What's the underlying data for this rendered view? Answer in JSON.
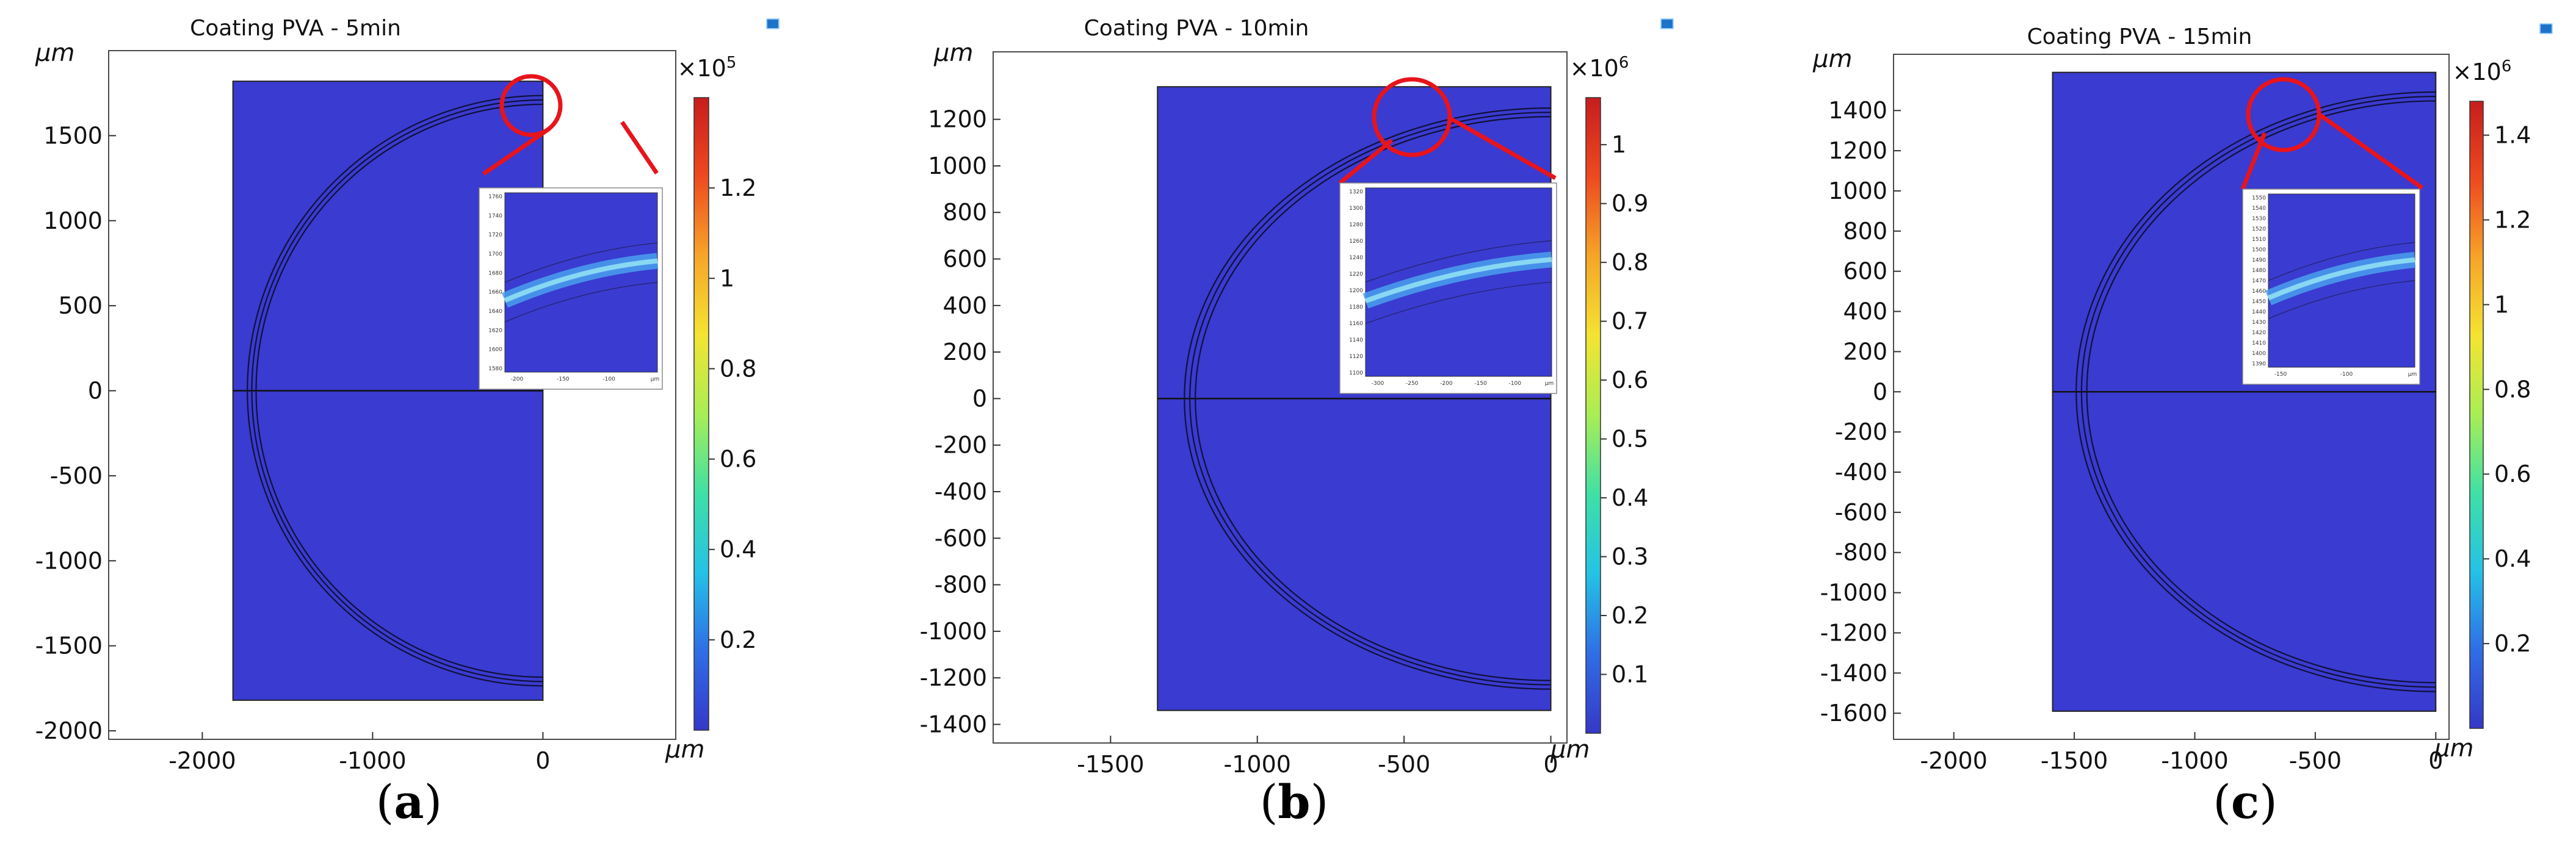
{
  "figure": {
    "panel_labels": [
      "a",
      "b",
      "c"
    ],
    "colorbar_colors": [
      "#3538c8",
      "#2f6ee6",
      "#24c2e6",
      "#3fe0a6",
      "#a8ee55",
      "#f4e431",
      "#f6a528",
      "#ee4a1f",
      "#c71d1d"
    ]
  },
  "chart_data": [
    {
      "type": "heatmap",
      "title": "Coating PVA - 5min",
      "ylabel_unit": "μm",
      "xlabel_unit": "μm",
      "xlim": [
        -2550,
        780
      ],
      "ylim": [
        -2050,
        2000
      ],
      "x_ticks": [
        -2000,
        -1000,
        0
      ],
      "y_ticks": [
        -2000,
        -1500,
        -1000,
        -500,
        0,
        500,
        1000,
        1500
      ],
      "x_tick_labels": [
        "-2000",
        "-1000",
        "0"
      ],
      "y_tick_labels": [
        "-2000",
        "-1500",
        "-1000",
        "-500",
        "0",
        "500",
        "1000",
        "1500"
      ],
      "domain_x": [
        -1820,
        0
      ],
      "domain_y": [
        -1820,
        1820
      ],
      "ring_radius": 1710,
      "colorbar": {
        "multiplier": "×10^5",
        "multiplier_base": "×10",
        "multiplier_exp": "5",
        "min": 0,
        "max": 1.4,
        "ticks": [
          0.2,
          0.4,
          0.6,
          0.8,
          1,
          1.2
        ],
        "tick_labels": [
          "0.2",
          "0.4",
          "0.6",
          "0.8",
          "1",
          "1.2"
        ]
      },
      "inset": {
        "y_tick_labels": [
          "1760",
          "1740",
          "1720",
          "1700",
          "1680",
          "1660",
          "1640",
          "1620",
          "1600",
          "1580"
        ],
        "x_tick_labels": [
          "-200",
          "-150",
          "-100",
          "μm"
        ]
      }
    },
    {
      "type": "heatmap",
      "title": "Coating PVA - 10min",
      "ylabel_unit": "μm",
      "xlabel_unit": "μm",
      "xlim": [
        -1900,
        55
      ],
      "ylim": [
        -1480,
        1490
      ],
      "x_ticks": [
        -1500,
        -1000,
        -500,
        0
      ],
      "y_ticks": [
        -1400,
        -1200,
        -1000,
        -800,
        -600,
        -400,
        -200,
        0,
        200,
        400,
        600,
        800,
        1000,
        1200
      ],
      "x_tick_labels": [
        "-1500",
        "-1000",
        "-500",
        "0"
      ],
      "y_tick_labels": [
        "-1400",
        "-1200",
        "-1000",
        "-800",
        "-600",
        "-400",
        "-200",
        "0",
        "200",
        "400",
        "600",
        "800",
        "1000",
        "1200"
      ],
      "domain_x": [
        -1340,
        0
      ],
      "domain_y": [
        -1340,
        1340
      ],
      "ring_radius": 1230,
      "colorbar": {
        "multiplier": "×10^6",
        "multiplier_base": "×10",
        "multiplier_exp": "6",
        "min": 0,
        "max": 1.08,
        "ticks": [
          0.1,
          0.2,
          0.3,
          0.4,
          0.5,
          0.6,
          0.7,
          0.8,
          0.9,
          1
        ],
        "tick_labels": [
          "0.1",
          "0.2",
          "0.3",
          "0.4",
          "0.5",
          "0.6",
          "0.7",
          "0.8",
          "0.9",
          "1"
        ]
      },
      "inset": {
        "y_tick_labels": [
          "1320",
          "1300",
          "1280",
          "1260",
          "1240",
          "1220",
          "1200",
          "1180",
          "1160",
          "1140",
          "1120",
          "1100"
        ],
        "x_tick_labels": [
          "-300",
          "-250",
          "-200",
          "-150",
          "-100",
          "μm"
        ]
      }
    },
    {
      "type": "heatmap",
      "title": "Coating PVA - 15min",
      "ylabel_unit": "μm",
      "xlabel_unit": "μm",
      "xlim": [
        -2250,
        55
      ],
      "ylim": [
        -1730,
        1680
      ],
      "x_ticks": [
        -2000,
        -1500,
        -1000,
        -500,
        0
      ],
      "y_ticks": [
        -1600,
        -1400,
        -1200,
        -1000,
        -800,
        -600,
        -400,
        -200,
        0,
        200,
        400,
        600,
        800,
        1000,
        1200,
        1400
      ],
      "x_tick_labels": [
        "-2000",
        "-1500",
        "-1000",
        "-500",
        "0"
      ],
      "y_tick_labels": [
        "-1600",
        "-1400",
        "-1200",
        "-1000",
        "-800",
        "-600",
        "-400",
        "-200",
        "0",
        "200",
        "400",
        "600",
        "800",
        "1000",
        "1200",
        "1400"
      ],
      "domain_x": [
        -1590,
        0
      ],
      "domain_y": [
        -1590,
        1590
      ],
      "ring_radius": 1470,
      "colorbar": {
        "multiplier": "×10^6",
        "multiplier_base": "×10",
        "multiplier_exp": "6",
        "min": 0,
        "max": 1.48,
        "ticks": [
          0.2,
          0.4,
          0.6,
          0.8,
          1,
          1.2,
          1.4
        ],
        "tick_labels": [
          "0.2",
          "0.4",
          "0.6",
          "0.8",
          "1",
          "1.2",
          "1.4"
        ]
      },
      "inset": {
        "y_tick_labels": [
          "1550",
          "1540",
          "1530",
          "1520",
          "1510",
          "1500",
          "1490",
          "1480",
          "1470",
          "1460",
          "1450",
          "1440",
          "1430",
          "1420",
          "1410",
          "1400",
          "1390"
        ],
        "x_tick_labels": [
          "-150",
          "-100",
          "μm"
        ]
      }
    }
  ]
}
